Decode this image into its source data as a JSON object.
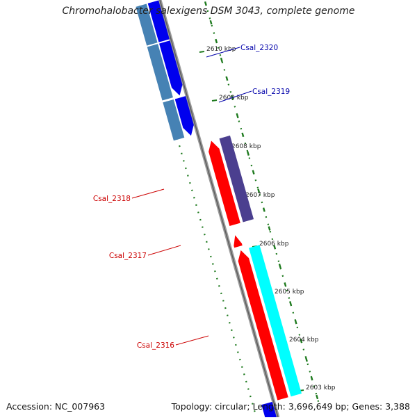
{
  "title": "Chromohalobacter salexigens DSM 3043, complete genome",
  "accession": "Accession: NC_007963",
  "summary": "Topology: circular; Length: 3,696,649 bp; Genes: 3,388",
  "colors": {
    "ruler": "#1e7a1e",
    "backbone": "#8a8a8a",
    "forward_gene": "#ff0000",
    "reverse_gene": "#0000ee",
    "cds_dark": "#4b3f8f",
    "cds_light_blue": "#4682b4",
    "cds_cyan": "#00ffff",
    "label_red": "#cc0000",
    "label_blue": "#0000aa"
  },
  "ruler_labels": [
    "2610 kbp",
    "2609 kbp",
    "2608 kbp",
    "2607 kbp",
    "2606 kbp",
    "2605 kbp",
    "2604 kbp",
    "2603 kbp"
  ],
  "gene_labels": [
    "Csal_2320",
    "Csal_2319",
    "Csal_2318",
    "Csal_2317",
    "Csal_2316"
  ]
}
